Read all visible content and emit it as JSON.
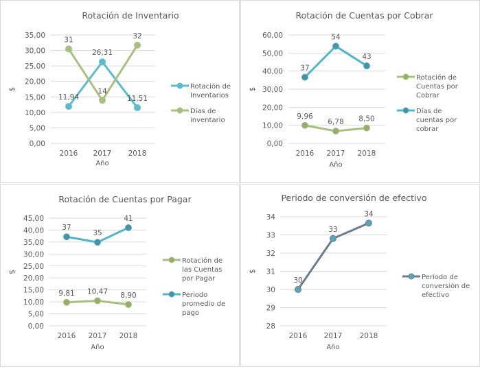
{
  "chart_data": [
    {
      "type": "line",
      "title": "Rotación de Inventario",
      "xlabel": "Año",
      "ylabel": "$",
      "categories": [
        "2016",
        "2017",
        "2018"
      ],
      "ylim": [
        0,
        35
      ],
      "yticks": [
        "0,00",
        "5,00",
        "10,00",
        "15,00",
        "20,00",
        "25,00",
        "30,00",
        "35,00"
      ],
      "grid": true,
      "legend": "right",
      "series": [
        {
          "name": "Rotación de Inventarios",
          "values": [
            11.94,
            26.31,
            11.51
          ],
          "labels": [
            "11,94",
            "26,31",
            "11,51"
          ],
          "color": "#5bbccc",
          "marker": "#5bbccc"
        },
        {
          "name": "Días de inventario",
          "values": [
            30.5,
            13.9,
            31.7
          ],
          "labels": [
            "31",
            "14",
            "32"
          ],
          "color": "#a9bf82",
          "marker": "#a9bf82"
        }
      ]
    },
    {
      "type": "line",
      "title": "Rotación de Cuentas por Cobrar",
      "xlabel": "Año",
      "ylabel": "$",
      "categories": [
        "2016",
        "2017",
        "2018"
      ],
      "ylim": [
        0,
        60
      ],
      "yticks": [
        "0,00",
        "10,00",
        "20,00",
        "30,00",
        "40,00",
        "50,00",
        "60,00"
      ],
      "grid": true,
      "legend": "right",
      "series": [
        {
          "name": "Rotación de Cuentas por Cobrar",
          "values": [
            9.96,
            6.78,
            8.5
          ],
          "labels": [
            "9,96",
            "6,78",
            "8,50"
          ],
          "color": "#a9bf82",
          "marker": "#98ac6c"
        },
        {
          "name": "Días de cuentas por cobrar",
          "values": [
            36.6,
            53.8,
            42.9
          ],
          "labels": [
            "37",
            "54",
            "43"
          ],
          "color": "#4fb5c8",
          "marker": "#4a90a4"
        }
      ]
    },
    {
      "type": "line",
      "title": "Rotación de Cuentas por Pagar",
      "xlabel": "Año",
      "ylabel": "$",
      "categories": [
        "2016",
        "2017",
        "2018"
      ],
      "ylim": [
        0,
        45
      ],
      "yticks": [
        "0,00",
        "5,00",
        "10,00",
        "15,00",
        "20,00",
        "25,00",
        "30,00",
        "35,00",
        "40,00",
        "45,00"
      ],
      "grid": true,
      "legend": "right",
      "series": [
        {
          "name": "Rotación de las Cuentas por Pagar",
          "values": [
            9.81,
            10.47,
            8.9
          ],
          "labels": [
            "9,81",
            "10,47",
            "8,90"
          ],
          "color": "#a9bf82",
          "marker": "#98ac6c"
        },
        {
          "name": "Periodo promedio de pago",
          "values": [
            37.2,
            34.9,
            41.0
          ],
          "labels": [
            "37",
            "35",
            "41"
          ],
          "color": "#4fb5c8",
          "marker": "#4a90a4"
        }
      ]
    },
    {
      "type": "line",
      "title": "Periodo de conversión de efectivo",
      "xlabel": "Año",
      "ylabel": "$",
      "categories": [
        "2016",
        "2017",
        "2018"
      ],
      "ylim": [
        28,
        34
      ],
      "yticks": [
        "28",
        "29",
        "30",
        "31",
        "32",
        "33",
        "34"
      ],
      "grid": true,
      "legend": "right",
      "series": [
        {
          "name": "Período de conversión de efectivo",
          "values": [
            30.0,
            32.8,
            33.65
          ],
          "labels": [
            "30",
            "33",
            "34"
          ],
          "color": "#6b7c8e",
          "marker": "#5aa6b6"
        }
      ]
    }
  ]
}
